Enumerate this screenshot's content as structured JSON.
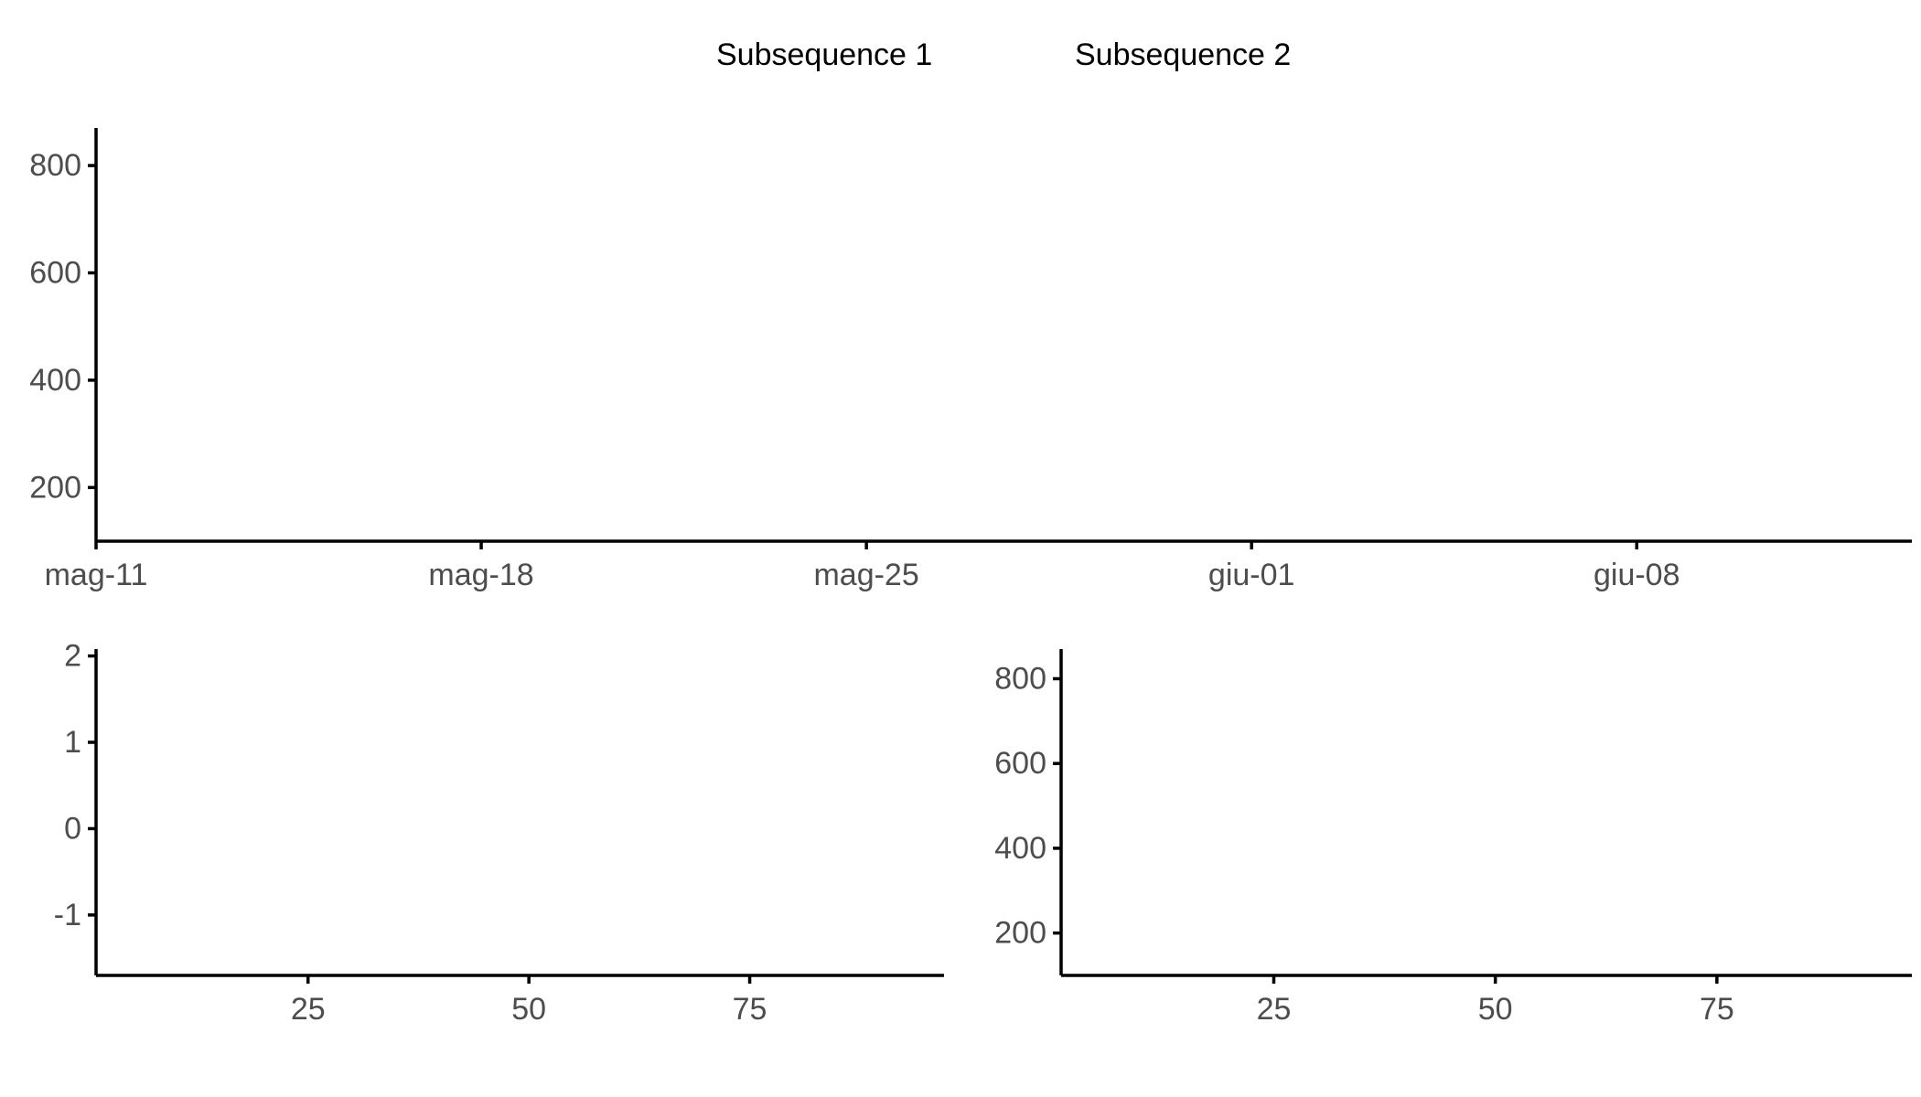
{
  "legend": {
    "position": "top",
    "items": [
      {
        "label": "Subsequence 1"
      },
      {
        "label": "Subsequence 2"
      }
    ]
  },
  "chart_data": [
    {
      "id": "top-panel",
      "type": "line",
      "title": "",
      "xlabel": "",
      "ylabel": "",
      "x_axis_type": "date",
      "xlim": [
        "2020-05-11",
        "2020-06-13"
      ],
      "x_ticks": [
        {
          "value": "2020-05-11",
          "label": "mag-11"
        },
        {
          "value": "2020-05-18",
          "label": "mag-18"
        },
        {
          "value": "2020-05-25",
          "label": "mag-25"
        },
        {
          "value": "2020-06-01",
          "label": "giu-01"
        },
        {
          "value": "2020-06-08",
          "label": "giu-08"
        }
      ],
      "ylim": [
        100,
        870
      ],
      "y_ticks": [
        200,
        400,
        600,
        800
      ],
      "grid": false,
      "series": []
    },
    {
      "id": "bottom-left-panel",
      "type": "line",
      "title": "",
      "xlabel": "",
      "ylabel": "",
      "xlim": [
        1,
        97
      ],
      "x_ticks": [
        25,
        50,
        75
      ],
      "ylim": [
        -1.7,
        2.08
      ],
      "y_ticks": [
        -1,
        0,
        1,
        2
      ],
      "grid": false,
      "series": []
    },
    {
      "id": "bottom-right-panel",
      "type": "line",
      "title": "",
      "xlabel": "",
      "ylabel": "",
      "xlim": [
        1,
        97
      ],
      "x_ticks": [
        25,
        50,
        75
      ],
      "ylim": [
        100,
        870
      ],
      "y_ticks": [
        200,
        400,
        600,
        800
      ],
      "grid": false,
      "series": []
    }
  ]
}
